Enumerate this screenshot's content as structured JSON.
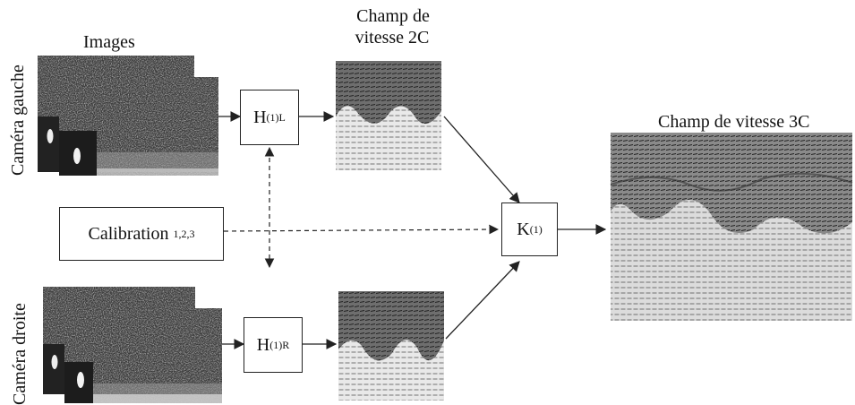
{
  "labels": {
    "camera_left": "Caméra gauche",
    "camera_right": "Caméra droite",
    "images": "Images",
    "field_2c_line1": "Champ de",
    "field_2c_line2": "vitesse 2C",
    "field_3c": "Champ de vitesse 3C"
  },
  "boxes": {
    "h_left": {
      "base": "H",
      "sup": "(1)",
      "sub": "L"
    },
    "h_right": {
      "base": "H",
      "sup": "(1)",
      "sub": "R"
    },
    "calibration": {
      "base": "Calibration",
      "sub": "1,2,3"
    },
    "k": {
      "base": "K",
      "sup": "(1)"
    }
  }
}
